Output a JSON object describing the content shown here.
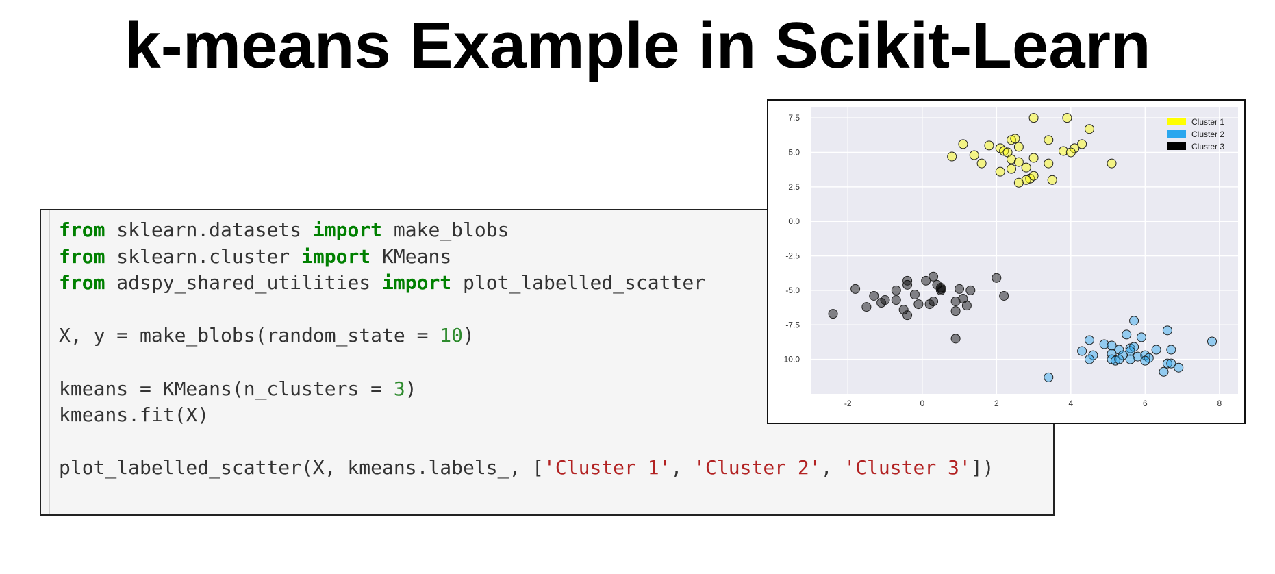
{
  "slide": {
    "title": "k-means Example in Scikit-Learn"
  },
  "code": {
    "lines": [
      [
        {
          "t": "from",
          "c": "kw"
        },
        {
          "t": " sklearn.datasets "
        },
        {
          "t": "import",
          "c": "kw"
        },
        {
          "t": " make_blobs"
        }
      ],
      [
        {
          "t": "from",
          "c": "kw"
        },
        {
          "t": " sklearn.cluster "
        },
        {
          "t": "import",
          "c": "kw"
        },
        {
          "t": " KMeans"
        }
      ],
      [
        {
          "t": "from",
          "c": "kw"
        },
        {
          "t": " adspy_shared_utilities "
        },
        {
          "t": "import",
          "c": "kw"
        },
        {
          "t": " plot_labelled_scatter"
        }
      ],
      [],
      [
        {
          "t": "X, y = make_blobs(random_state = "
        },
        {
          "t": "10",
          "c": "num"
        },
        {
          "t": ")"
        }
      ],
      [],
      [
        {
          "t": "kmeans = KMeans(n_clusters = "
        },
        {
          "t": "3",
          "c": "num"
        },
        {
          "t": ")"
        }
      ],
      [
        {
          "t": "kmeans.fit(X)"
        }
      ],
      [],
      [
        {
          "t": "plot_labelled_scatter(X, kmeans.labels_, ["
        },
        {
          "t": "'Cluster 1'",
          "c": "str"
        },
        {
          "t": ", "
        },
        {
          "t": "'Cluster 2'",
          "c": "str"
        },
        {
          "t": ", "
        },
        {
          "t": "'Cluster 3'",
          "c": "str"
        },
        {
          "t": "])"
        }
      ]
    ]
  },
  "chart_data": {
    "type": "scatter",
    "xlim": [
      -3.0,
      8.5
    ],
    "ylim": [
      -12.5,
      8.3
    ],
    "xticks": [
      -2,
      0,
      2,
      4,
      6,
      8
    ],
    "xtick_labels": [
      "-2",
      "0",
      "2",
      "4",
      "6",
      "8"
    ],
    "yticks": [
      7.5,
      5.0,
      2.5,
      0.0,
      -2.5,
      -5.0,
      -7.5,
      -10.0
    ],
    "ytick_labels": [
      "7.5",
      "5.0",
      "2.5",
      "0.0",
      "-2.5",
      "-5.0",
      "-7.5",
      "-10.0"
    ],
    "grid": true,
    "legend_position": "top-right",
    "background_color": "#eaeaf2",
    "series": [
      {
        "name": "Cluster 1",
        "color": "#ffff00",
        "points": [
          [
            3.0,
            7.5
          ],
          [
            3.9,
            7.5
          ],
          [
            4.5,
            6.7
          ],
          [
            2.4,
            5.9
          ],
          [
            2.5,
            6.0
          ],
          [
            3.4,
            5.9
          ],
          [
            4.3,
            5.6
          ],
          [
            4.1,
            5.3
          ],
          [
            3.8,
            5.1
          ],
          [
            4.0,
            5.0
          ],
          [
            1.1,
            5.6
          ],
          [
            1.8,
            5.5
          ],
          [
            2.1,
            5.3
          ],
          [
            2.2,
            5.1
          ],
          [
            2.6,
            5.4
          ],
          [
            2.3,
            5.0
          ],
          [
            1.4,
            4.8
          ],
          [
            0.8,
            4.7
          ],
          [
            1.6,
            4.2
          ],
          [
            2.4,
            4.5
          ],
          [
            2.6,
            4.3
          ],
          [
            3.0,
            4.6
          ],
          [
            3.4,
            4.2
          ],
          [
            2.4,
            3.8
          ],
          [
            2.8,
            3.9
          ],
          [
            2.1,
            3.6
          ],
          [
            2.9,
            3.1
          ],
          [
            3.0,
            3.3
          ],
          [
            2.8,
            3.0
          ],
          [
            3.5,
            3.0
          ],
          [
            2.6,
            2.8
          ],
          [
            5.1,
            4.2
          ]
        ]
      },
      {
        "name": "Cluster 2",
        "color": "#2aa7ee",
        "points": [
          [
            5.7,
            -7.2
          ],
          [
            6.6,
            -7.9
          ],
          [
            5.5,
            -8.2
          ],
          [
            5.9,
            -8.4
          ],
          [
            4.5,
            -8.6
          ],
          [
            7.8,
            -8.7
          ],
          [
            4.9,
            -8.9
          ],
          [
            5.1,
            -9.0
          ],
          [
            5.6,
            -9.2
          ],
          [
            5.7,
            -9.1
          ],
          [
            5.3,
            -9.3
          ],
          [
            5.6,
            -9.4
          ],
          [
            6.3,
            -9.3
          ],
          [
            6.7,
            -9.3
          ],
          [
            4.3,
            -9.4
          ],
          [
            5.1,
            -9.6
          ],
          [
            4.6,
            -9.7
          ],
          [
            5.4,
            -9.7
          ],
          [
            5.8,
            -9.8
          ],
          [
            6.0,
            -9.7
          ],
          [
            6.1,
            -9.9
          ],
          [
            4.5,
            -10.0
          ],
          [
            5.1,
            -10.0
          ],
          [
            5.2,
            -10.1
          ],
          [
            5.3,
            -10.0
          ],
          [
            5.6,
            -10.0
          ],
          [
            6.0,
            -10.1
          ],
          [
            6.6,
            -10.3
          ],
          [
            6.7,
            -10.3
          ],
          [
            6.9,
            -10.6
          ],
          [
            6.5,
            -10.9
          ],
          [
            3.4,
            -11.3
          ]
        ]
      },
      {
        "name": "Cluster 3",
        "color": "#000000",
        "points": [
          [
            -1.8,
            -4.9
          ],
          [
            -1.3,
            -5.4
          ],
          [
            -1.0,
            -5.7
          ],
          [
            -1.1,
            -5.9
          ],
          [
            -1.5,
            -6.2
          ],
          [
            -0.7,
            -5.0
          ],
          [
            -0.4,
            -4.6
          ],
          [
            -0.4,
            -4.3
          ],
          [
            -0.2,
            -5.3
          ],
          [
            -0.1,
            -6.0
          ],
          [
            0.1,
            -4.3
          ],
          [
            0.3,
            -4.0
          ],
          [
            0.4,
            -4.6
          ],
          [
            0.5,
            -4.8
          ],
          [
            0.5,
            -4.9
          ],
          [
            0.5,
            -5.0
          ],
          [
            0.3,
            -5.8
          ],
          [
            0.2,
            -6.0
          ],
          [
            -0.5,
            -6.4
          ],
          [
            -0.4,
            -6.8
          ],
          [
            -0.7,
            -5.7
          ],
          [
            1.0,
            -4.9
          ],
          [
            1.3,
            -5.0
          ],
          [
            1.1,
            -5.6
          ],
          [
            1.2,
            -6.1
          ],
          [
            0.9,
            -5.8
          ],
          [
            0.9,
            -6.5
          ],
          [
            2.0,
            -4.1
          ],
          [
            2.2,
            -5.4
          ],
          [
            0.9,
            -8.5
          ],
          [
            -2.4,
            -6.7
          ]
        ]
      }
    ]
  }
}
